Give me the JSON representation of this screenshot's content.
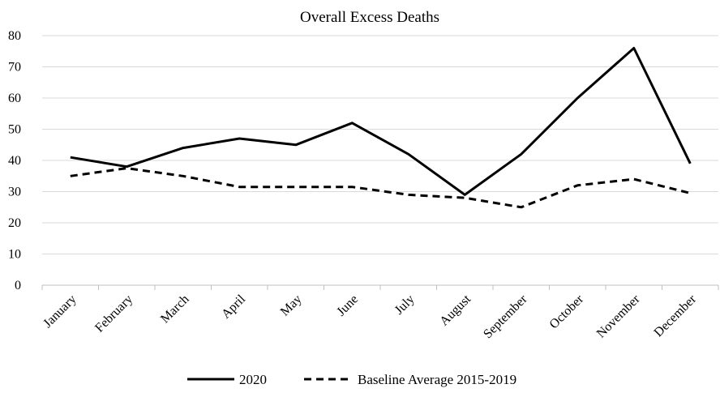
{
  "chart_data": {
    "type": "line",
    "title": "Overall Excess Deaths",
    "xlabel": "",
    "ylabel": "",
    "categories": [
      "January",
      "February",
      "March",
      "April",
      "May",
      "June",
      "July",
      "August",
      "September",
      "October",
      "November",
      "December"
    ],
    "ylim": [
      0,
      80
    ],
    "yticks": [
      0,
      10,
      20,
      30,
      40,
      50,
      60,
      70,
      80
    ],
    "grid": true,
    "legend_position": "bottom",
    "series": [
      {
        "name": "2020",
        "dash": "solid",
        "color": "#000000",
        "values": [
          41,
          38,
          44,
          47,
          45,
          52,
          42,
          29,
          42,
          60,
          76,
          39
        ]
      },
      {
        "name": "Baseline Average 2015-2019",
        "dash": "dashed",
        "color": "#000000",
        "values": [
          35,
          37.5,
          35,
          31.5,
          31.5,
          31.5,
          29,
          28,
          25,
          32,
          34,
          29.5
        ]
      }
    ]
  }
}
